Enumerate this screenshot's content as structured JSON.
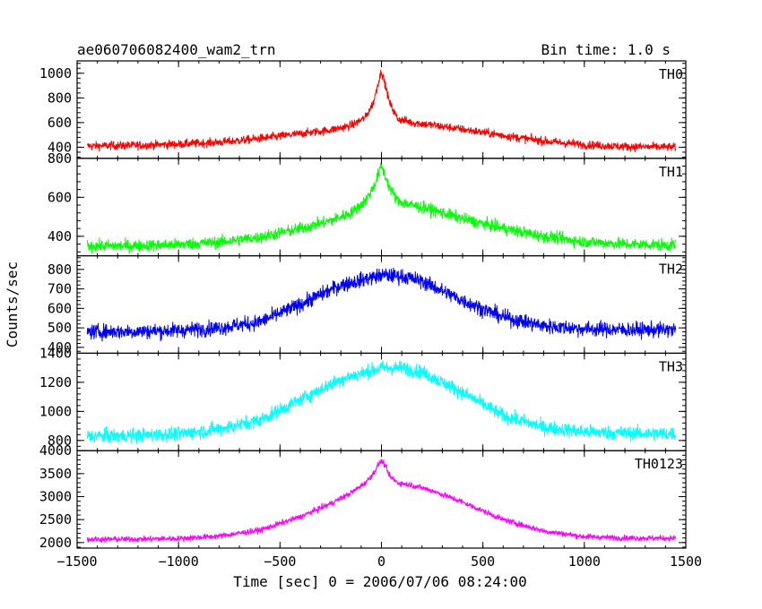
{
  "chart_data": {
    "type": "line",
    "title_left": "ae060706082400_wam2_trn",
    "title_right": "Bin time: 1.0 s",
    "xlabel": "Time [sec] 0 = 2006/07/06 08:24:00",
    "ylabel": "Counts/sec",
    "xlim": [
      -1500,
      1500
    ],
    "x_ticks": [
      -1500,
      -1000,
      -500,
      0,
      500,
      1000,
      1500
    ],
    "panels": [
      {
        "name": "TH0",
        "color": "#ff0000",
        "ylim": [
          310,
          1100
        ],
        "y_ticks": [
          400,
          600,
          800,
          1000
        ],
        "x": [
          -1450,
          -1200,
          -1000,
          -800,
          -600,
          -400,
          -250,
          -150,
          -80,
          -40,
          -15,
          0,
          15,
          40,
          80,
          150,
          250,
          400,
          600,
          800,
          1000,
          1200,
          1450
        ],
        "y": [
          410,
          415,
          425,
          440,
          470,
          510,
          540,
          575,
          640,
          760,
          930,
          1020,
          930,
          760,
          630,
          600,
          580,
          545,
          495,
          450,
          420,
          405,
          400
        ],
        "noise": 25
      },
      {
        "name": "TH1",
        "color": "#00ff00",
        "ylim": [
          300,
          800
        ],
        "y_ticks": [
          400,
          600,
          800
        ],
        "x": [
          -1450,
          -1200,
          -1000,
          -800,
          -600,
          -400,
          -250,
          -150,
          -80,
          -40,
          -15,
          0,
          15,
          40,
          80,
          150,
          250,
          400,
          600,
          800,
          1000,
          1200,
          1450
        ],
        "y": [
          350,
          352,
          358,
          370,
          395,
          440,
          480,
          520,
          580,
          650,
          720,
          760,
          720,
          650,
          580,
          560,
          535,
          490,
          440,
          400,
          372,
          360,
          355
        ],
        "noise": 22
      },
      {
        "name": "TH2",
        "color": "#0000ff",
        "ylim": [
          370,
          870
        ],
        "y_ticks": [
          400,
          500,
          600,
          700,
          800
        ],
        "x": [
          -1450,
          -1200,
          -1000,
          -800,
          -600,
          -400,
          -200,
          0,
          100,
          200,
          400,
          600,
          800,
          1000,
          1200,
          1450
        ],
        "y": [
          480,
          482,
          487,
          500,
          530,
          620,
          720,
          770,
          765,
          740,
          640,
          555,
          510,
          495,
          490,
          490
        ],
        "noise": 28
      },
      {
        "name": "TH3",
        "color": "#00ffff",
        "ylim": [
          730,
          1400
        ],
        "y_ticks": [
          800,
          1000,
          1200,
          1400
        ],
        "x": [
          -1450,
          -1200,
          -1000,
          -800,
          -600,
          -400,
          -200,
          0,
          100,
          200,
          400,
          600,
          800,
          1000,
          1200,
          1450
        ],
        "y": [
          830,
          835,
          845,
          880,
          940,
          1080,
          1220,
          1300,
          1300,
          1270,
          1130,
          970,
          890,
          860,
          850,
          845
        ],
        "noise": 35
      },
      {
        "name": "TH0123",
        "color": "#ff00ff",
        "ylim": [
          1880,
          4000
        ],
        "y_ticks": [
          2000,
          2500,
          3000,
          3500,
          4000
        ],
        "x": [
          -1450,
          -1200,
          -1000,
          -800,
          -600,
          -400,
          -250,
          -150,
          -80,
          -40,
          -15,
          0,
          15,
          40,
          80,
          150,
          250,
          400,
          600,
          800,
          1000,
          1200,
          1450
        ],
        "y": [
          2070,
          2075,
          2090,
          2140,
          2270,
          2560,
          2850,
          3080,
          3300,
          3500,
          3700,
          3780,
          3700,
          3450,
          3300,
          3250,
          3130,
          2880,
          2500,
          2250,
          2130,
          2100,
          2095
        ],
        "noise": 45
      }
    ]
  }
}
